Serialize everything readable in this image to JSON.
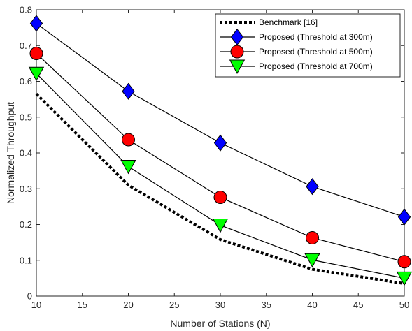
{
  "chart_data": {
    "type": "line",
    "xlabel": "Number of Stations (N)",
    "ylabel": "Normalized Throughput",
    "xlim": [
      10,
      50
    ],
    "ylim": [
      0,
      0.8
    ],
    "xticks": [
      "10",
      "15",
      "20",
      "25",
      "30",
      "35",
      "40",
      "45",
      "50"
    ],
    "yticks": [
      "0",
      "0.1",
      "0.2",
      "0.3",
      "0.4",
      "0.5",
      "0.6",
      "0.7",
      "0.8"
    ],
    "x": [
      10,
      20,
      30,
      40,
      50
    ],
    "grid": false,
    "legend_position": "top-right",
    "series": [
      {
        "name": "Benchmark [16]",
        "values": [
          0.565,
          0.31,
          0.158,
          0.075,
          0.035
        ],
        "style": "dotted",
        "color": "#000000",
        "marker": "none"
      },
      {
        "name": "Proposed (Threshold at 300m)",
        "values": [
          0.762,
          0.572,
          0.428,
          0.306,
          0.221
        ],
        "style": "solid",
        "color": "#000000",
        "marker": "diamond",
        "marker_color": "#0000ff"
      },
      {
        "name": "Proposed (Threshold at 500m)",
        "values": [
          0.678,
          0.437,
          0.276,
          0.163,
          0.096
        ],
        "style": "solid",
        "color": "#000000",
        "marker": "circle",
        "marker_color": "#ff0000"
      },
      {
        "name": "Proposed (Threshold at 700m)",
        "values": [
          0.622,
          0.362,
          0.198,
          0.101,
          0.05
        ],
        "style": "solid",
        "color": "#000000",
        "marker": "triangle-down",
        "marker_color": "#00ff00"
      }
    ]
  }
}
